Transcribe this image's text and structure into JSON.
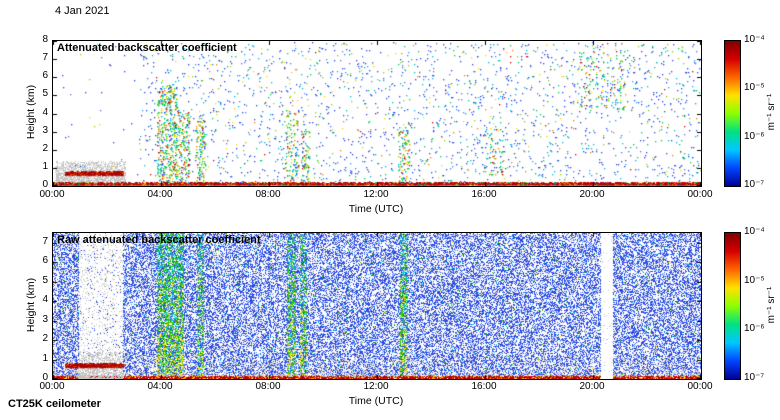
{
  "date_label": "4 Jan 2021",
  "instrument_label": "CT25K ceilometer",
  "colors": {
    "background": "#ffffff",
    "axis": "#000000"
  },
  "chart_data": [
    {
      "type": "heatmap",
      "title": "Attenuated backscatter coefficient",
      "xlabel": "Time (UTC)",
      "ylabel": "Height (km)",
      "x_ticks": [
        "00:00",
        "04:00",
        "08:00",
        "12:00",
        "16:00",
        "20:00",
        "00:00"
      ],
      "x_range_hours": [
        0,
        24
      ],
      "y_ticks": [
        "8",
        "7",
        "6",
        "5",
        "4",
        "3",
        "2",
        "1",
        "0"
      ],
      "ylim": [
        0,
        8
      ],
      "grid": false,
      "colorbar": {
        "scale": "log",
        "range": [
          1e-07,
          0.0001
        ],
        "tick_labels": [
          "10⁻⁴",
          "10⁻⁵",
          "10⁻⁶",
          "10⁻⁷"
        ],
        "unit_label": "m⁻¹ sr⁻¹",
        "palette_top_to_bottom": [
          "#7f0000",
          "#d40000",
          "#ff6400",
          "#ffe100",
          "#8cff00",
          "#00e182",
          "#00c8ff",
          "#0046ff",
          "#000096"
        ]
      },
      "features": {
        "sparse_dots": {
          "count": 2600,
          "height_km": [
            0.15,
            7.9
          ]
        },
        "gray_cluster": {
          "hours": [
            0.1,
            2.7
          ],
          "height_km": [
            0,
            1.35
          ],
          "count": 2400,
          "color": "#c6c6c6"
        },
        "elevated_red_line": {
          "hours": [
            0.45,
            2.6
          ],
          "height_km": [
            0.6,
            0.78
          ]
        },
        "surface_line": {
          "height_km": [
            0,
            0.12
          ]
        },
        "plumes": [
          {
            "hours": [
              3.85,
              4.6
            ],
            "height_km": [
              0,
              5.5
            ],
            "count": 420
          },
          {
            "hours": [
              4.6,
              5.05
            ],
            "height_km": [
              0,
              4.2
            ],
            "count": 150
          },
          {
            "hours": [
              5.3,
              5.65
            ],
            "height_km": [
              0,
              3.6
            ],
            "count": 130
          },
          {
            "hours": [
              8.6,
              9.1
            ],
            "height_km": [
              0,
              4.2
            ],
            "count": 110
          },
          {
            "hours": [
              9.2,
              9.5
            ],
            "height_km": [
              0,
              3.2
            ],
            "count": 70
          },
          {
            "hours": [
              12.8,
              13.2
            ],
            "height_km": [
              0,
              3.6
            ],
            "count": 90
          },
          {
            "hours": [
              15.9,
              16.7
            ],
            "height_km": [
              0.5,
              3.2
            ],
            "count": 60
          },
          {
            "hours": [
              19.4,
              21.2
            ],
            "height_km": [
              4.2,
              7.4
            ],
            "count": 140
          }
        ]
      }
    },
    {
      "type": "heatmap",
      "title": "Raw attenuated backscatter coefficient",
      "xlabel": "Time (UTC)",
      "ylabel": "Height (km)",
      "x_ticks": [
        "00:00",
        "04:00",
        "08:00",
        "12:00",
        "16:00",
        "20:00",
        "00:00"
      ],
      "x_range_hours": [
        0,
        24
      ],
      "y_ticks": [
        "7",
        "6",
        "5",
        "4",
        "3",
        "2",
        "1",
        "0"
      ],
      "ylim": [
        0,
        7.5
      ],
      "grid": false,
      "colorbar": {
        "scale": "log",
        "range": [
          1e-07,
          0.0001
        ],
        "tick_labels": [
          "10⁻⁴",
          "10⁻⁵",
          "10⁻⁶",
          "10⁻⁷"
        ],
        "unit_label": "m⁻¹ sr⁻¹",
        "palette_top_to_bottom": [
          "#7f0000",
          "#d40000",
          "#ff6400",
          "#ffe100",
          "#8cff00",
          "#00e182",
          "#00c8ff",
          "#0046ff",
          "#000096"
        ]
      },
      "features": {
        "noise_density": 0.42,
        "quiet_band": {
          "hours": [
            0.95,
            2.6
          ]
        },
        "gap_band": {
          "hours": [
            20.3,
            20.75
          ]
        },
        "streaks": [
          {
            "hours": [
              3.85,
              4.85
            ],
            "intensity": 1.0
          },
          {
            "hours": [
              5.35,
              5.6
            ],
            "intensity": 0.85
          },
          {
            "hours": [
              8.65,
              9.0
            ],
            "intensity": 0.9
          },
          {
            "hours": [
              9.15,
              9.4
            ],
            "intensity": 0.75
          },
          {
            "hours": [
              12.85,
              13.15
            ],
            "intensity": 0.85
          }
        ],
        "elevated_red_line": {
          "hours": [
            0.45,
            2.6
          ],
          "height_km": [
            0.6,
            0.78
          ]
        },
        "surface_line": {
          "height_km": [
            0,
            0.15
          ]
        },
        "gray_cluster": {
          "hours": [
            0.95,
            2.6
          ],
          "height_km": [
            0,
            1.4
          ],
          "count": 900,
          "color": "#c3c3c3"
        }
      }
    }
  ]
}
